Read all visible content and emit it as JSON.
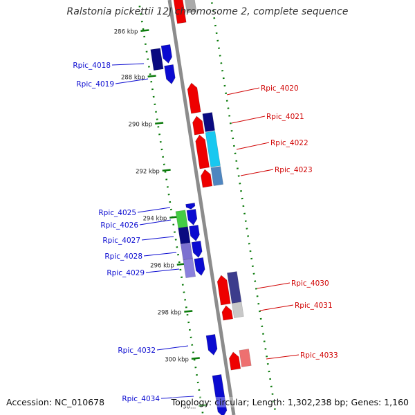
{
  "title": "Ralstonia pickettii 12J chromosome 2, complete sequence",
  "footer": {
    "accession": "Accession: NC_010678",
    "summary": "Topology: circular; Length: 1,302,238 bp; Genes: 1,160"
  },
  "colors": {
    "backbone": "#8c8c8c",
    "ruler": "#0a7a0a",
    "forward_label": "#0a0ad0",
    "reverse_label": "#d00000"
  },
  "ticks": [
    "286 kbp",
    "288 kbp",
    "290 kbp",
    "292 kbp",
    "294 kbp",
    "296 kbp",
    "298 kbp",
    "300 kbp",
    "30…"
  ],
  "genes_forward": [
    {
      "name": "Rpic_4018",
      "color": "#0b0bd0"
    },
    {
      "name": "Rpic_4019",
      "color": "#0b0bd0"
    },
    {
      "name": "Rpic_4025",
      "color": "#0b0bd0"
    },
    {
      "name": "Rpic_4026",
      "color": "#0b0bd0"
    },
    {
      "name": "Rpic_4027",
      "color": "#0b0bd0"
    },
    {
      "name": "Rpic_4028",
      "color": "#0b0bd0"
    },
    {
      "name": "Rpic_4029",
      "color": "#0b0bd0"
    },
    {
      "name": "Rpic_4032",
      "color": "#0b0bd0"
    },
    {
      "name": "Rpic_4034",
      "color": "#0b0bd0"
    }
  ],
  "genes_reverse": [
    {
      "name": "Rpic_4020",
      "color": "#ee0000"
    },
    {
      "name": "Rpic_4021",
      "color": "#ee0000"
    },
    {
      "name": "Rpic_4022",
      "color": "#ee0000"
    },
    {
      "name": "Rpic_4023",
      "color": "#ee0000"
    },
    {
      "name": "Rpic_4030",
      "color": "#ee0000"
    },
    {
      "name": "Rpic_4031",
      "color": "#ee0000"
    },
    {
      "name": "Rpic_4033",
      "color": "#ee0000"
    }
  ]
}
